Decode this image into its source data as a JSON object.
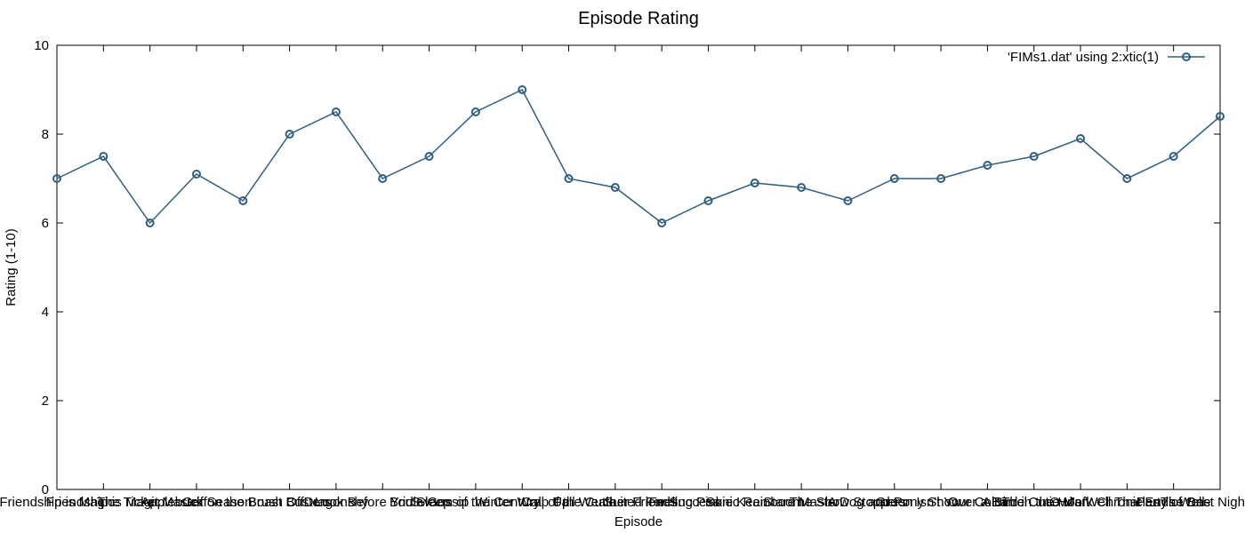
{
  "chart_data": {
    "type": "line",
    "title": "Episode Rating",
    "xlabel": "Episode",
    "ylabel": "Rating (1-10)",
    "ylim": [
      0,
      10
    ],
    "yticks": [
      0,
      2,
      4,
      6,
      8,
      10
    ],
    "grid": false,
    "legend_position": "top-right",
    "categories": [
      "Friendship is Magic",
      "Friendship is Magic",
      "The Ticket Master",
      "Applebuck Season",
      "Griffon the Brush Off",
      "Boast Busters",
      "Dragonshy",
      "Look Before You Sleep",
      "Bridle Gossip",
      "Swarm of the Century",
      "Winter Wrap Up",
      "Call of the Cutie",
      "Fall Weather Friends",
      "Suited For Success",
      "Feeling Pinkie Keen",
      "Sonic Rainboom",
      "Stare Master",
      "The Show Stoppers",
      "A Dog and Pony Show",
      "Green Isn't Your Color",
      "Over a Barrel",
      "A Bird in the Hoof",
      "The Cutie Mark Chronicles",
      "Owl's Well That Ends Well",
      "Party of One",
      "The Best Night Ever"
    ],
    "series": [
      {
        "name": "'FIMs1.dat' using 2:xtic(1)",
        "color": "#2f5f80",
        "values": [
          7,
          7.5,
          6,
          7.1,
          6.5,
          8,
          8.5,
          7,
          7.5,
          8.5,
          9,
          7,
          6.8,
          6,
          6.5,
          6.9,
          6.8,
          6.5,
          7,
          7,
          7.3,
          7.5,
          7.9,
          7,
          7.5,
          8.4
        ]
      }
    ]
  }
}
